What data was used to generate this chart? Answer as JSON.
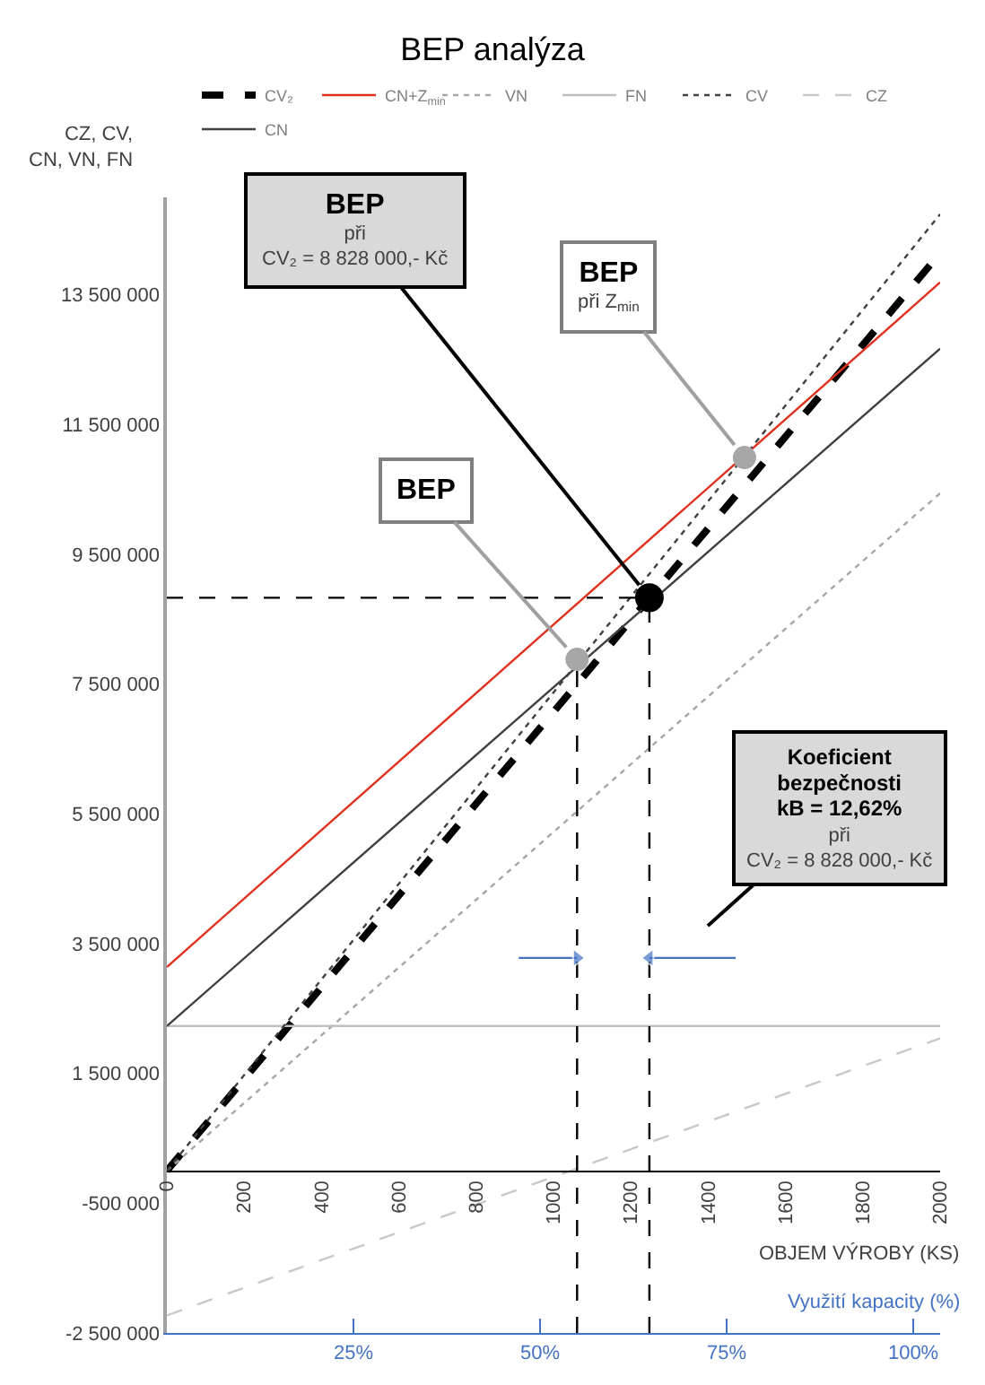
{
  "chart_data": {
    "type": "line",
    "title": "BEP analýza",
    "xlabel": "OBJEM VÝROBY (KS)",
    "ylabel": "CZ, CV,\nCN, VN, FN",
    "x2label": "Využití kapacity (%)",
    "xlim": [
      0,
      2000
    ],
    "xticks": [
      0,
      200,
      400,
      600,
      800,
      1000,
      1200,
      1400,
      1600,
      1800,
      2000
    ],
    "x2lim": [
      0,
      103.6
    ],
    "x2ticks": [
      {
        "value": 25,
        "label": "25%"
      },
      {
        "value": 50,
        "label": "50%"
      },
      {
        "value": 75,
        "label": "75%"
      },
      {
        "value": 100,
        "label": "100%"
      }
    ],
    "ylim": [
      -2500000,
      15000000
    ],
    "yticks": [
      {
        "value": -2500000,
        "label": "-2 500 000"
      },
      {
        "value": -500000,
        "label": "-500 000"
      },
      {
        "value": 1500000,
        "label": "1 500 000"
      },
      {
        "value": 3500000,
        "label": "3 500 000"
      },
      {
        "value": 5500000,
        "label": "5 500 000"
      },
      {
        "value": 7500000,
        "label": "7 500 000"
      },
      {
        "value": 9500000,
        "label": "9 500 000"
      },
      {
        "value": 11500000,
        "label": "11 500 000"
      },
      {
        "value": 13500000,
        "label": "13 500 000"
      }
    ],
    "legend": "top",
    "series": [
      {
        "name": "CV₂",
        "color": "#000000",
        "x": [
          0,
          2000
        ],
        "values": [
          0,
          14140000
        ],
        "line_style": "dashed"
      },
      {
        "name": "CN+Z$_{min}$",
        "color": "#e0301e",
        "x": [
          0,
          2000
        ],
        "values": [
          3140000,
          13690000
        ],
        "line_style": "solid"
      },
      {
        "name": "VN",
        "color": "#a6a6a6",
        "x": [
          0,
          2000
        ],
        "values": [
          0,
          10440000
        ],
        "line_style": "dotted"
      },
      {
        "name": "FN",
        "color": "#bfbfbf",
        "x": [
          0,
          2000
        ],
        "values": [
          2230000,
          2230000
        ],
        "line_style": "solid"
      },
      {
        "name": "CV",
        "color": "#404040",
        "x": [
          0,
          2000
        ],
        "values": [
          0,
          14740000
        ],
        "line_style": "dotted"
      },
      {
        "name": "CZ",
        "color": "#c8c8c8",
        "x": [
          0,
          2000
        ],
        "values": [
          -2230000,
          2040000
        ],
        "line_style": "dashed"
      },
      {
        "name": "CN",
        "color": "#404040",
        "x": [
          0,
          2000
        ],
        "values": [
          2230000,
          12670000
        ],
        "line_style": "solid"
      },
      {
        "color": "#000000",
        "x": [
          0,
          1248
        ],
        "values": [
          8830000,
          8830000
        ],
        "line_style": "dashed"
      },
      {
        "color": "#000000",
        "x": [
          1061,
          1061
        ],
        "values": [
          -2500000,
          7880000
        ],
        "line_style": "dashed"
      },
      {
        "color": "#000000",
        "x": [
          1248,
          1248
        ],
        "values": [
          -2500000,
          8830000
        ],
        "line_style": "dashed"
      },
      {
        "color": "#4472c4",
        "x": [
          910,
          1061
        ],
        "values": [
          3280000,
          3280000
        ],
        "line_style": "solid",
        "marker": "triangle"
      },
      {
        "color": "#4472c4",
        "x": [
          1471,
          1248
        ],
        "values": [
          3280000,
          3280000
        ],
        "line_style": "solid",
        "marker": "triangle"
      },
      {
        "type": "scatter",
        "color": "#a6a6a6",
        "x": [
          1061,
          1494
        ],
        "values": [
          7880000,
          10990000
        ],
        "marker": "circle"
      },
      {
        "type": "scatter",
        "color": "#000000",
        "x": [
          1248
        ],
        "values": [
          8830000
        ],
        "marker": "circle"
      }
    ],
    "annotations": [
      {
        "text": "BEP\npři\nCV₂ = 8 828 000,- Kč",
        "x": 1248,
        "y": 8830000
      },
      {
        "text": "BEP",
        "x": 1061,
        "y": 7880000
      },
      {
        "text": "BEP\npři Z$_{min}$",
        "x": 1494,
        "y": 10990000
      },
      "Koeficient\nbezpečnosti\nkB = 12,62%\npři\nCV₂ = 8 828 000,- Kč"
    ]
  }
}
